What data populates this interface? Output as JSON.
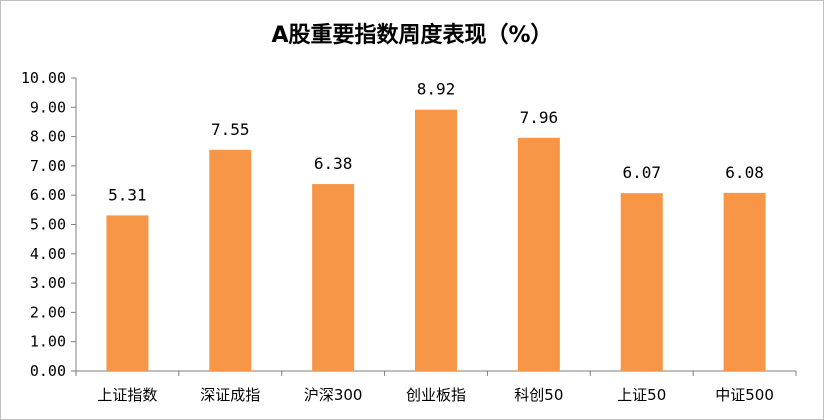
{
  "chart_data": {
    "type": "bar",
    "title": "A股重要指数周度表现（%）",
    "categories": [
      "上证指数",
      "深证成指",
      "沪深300",
      "创业板指",
      "科创50",
      "上证50",
      "中证500"
    ],
    "values": [
      5.31,
      7.55,
      6.38,
      8.92,
      7.96,
      6.07,
      6.08
    ],
    "data_labels": [
      "5.31",
      "7.55",
      "6.38",
      "8.92",
      "7.96",
      "6.07",
      "6.08"
    ],
    "ylim": [
      0,
      10
    ],
    "yticks": [
      "0.00",
      "1.00",
      "2.00",
      "3.00",
      "4.00",
      "5.00",
      "6.00",
      "7.00",
      "8.00",
      "9.00",
      "10.00"
    ],
    "bar_color": "#F79646",
    "grid": false,
    "legend": "none"
  }
}
